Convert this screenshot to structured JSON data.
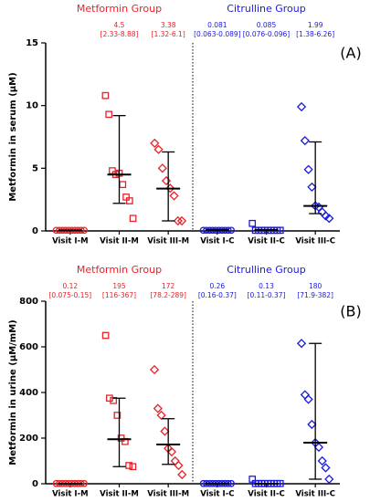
{
  "chart_data": [
    {
      "type": "dotplot",
      "panel_label": "(A)",
      "ylabel": "Metformin in serum (µM)",
      "groups": [
        "Metformin Group",
        "Citrulline Group"
      ],
      "group_colors": [
        "#e8222a",
        "#1a1adc"
      ],
      "categories": [
        "Visit I-M",
        "Visit II-M",
        "Visit III-M",
        "Visit I-C",
        "Visit II-C",
        "Visit III-C"
      ],
      "colors": [
        "#e8222a",
        "#e8222a",
        "#e8222a",
        "#1a1adc",
        "#1a1adc",
        "#1a1adc"
      ],
      "markers": [
        "circle",
        "square",
        "diamond",
        "circle",
        "square",
        "diamond"
      ],
      "points": [
        [
          0.05,
          0.05,
          0.05,
          0.05,
          0.05,
          0.05,
          0.05,
          0.05,
          0.05,
          0.05
        ],
        [
          10.8,
          9.3,
          4.8,
          4.5,
          4.6,
          3.7,
          2.7,
          2.4,
          1.0
        ],
        [
          7.0,
          6.5,
          5.0,
          4.0,
          3.4,
          2.8,
          0.8,
          0.8
        ],
        [
          0.05,
          0.05,
          0.05,
          0.05,
          0.05,
          0.05,
          0.05,
          0.05,
          0.05,
          0.05
        ],
        [
          0.6,
          0.05,
          0.05,
          0.05,
          0.05,
          0.05,
          0.05,
          0.05,
          0.05,
          0.05
        ],
        [
          9.9,
          7.2,
          4.9,
          3.5,
          2.0,
          1.9,
          1.5,
          1.2,
          1.0
        ]
      ],
      "medians": [
        0.05,
        4.5,
        3.38,
        0.081,
        0.085,
        1.99
      ],
      "median_labels": [
        null,
        "4.5",
        "3.38",
        "0.081",
        "0.085",
        "1.99"
      ],
      "range_labels": [
        null,
        "[2.33-8.88]",
        "[1.32-6.1]",
        "[0.063-0.089]",
        "[0.076-0.096]",
        "[1.38-6.26]"
      ],
      "whisker_low": [
        0.05,
        2.2,
        0.8,
        0.05,
        0.05,
        1.38
      ],
      "whisker_high": [
        0.05,
        9.2,
        6.3,
        0.05,
        0.05,
        7.1
      ],
      "ylim": [
        0,
        15
      ],
      "yticks": [
        0,
        5,
        10,
        15
      ]
    },
    {
      "type": "dotplot",
      "panel_label": "(B)",
      "ylabel": "Metformin in urine (µM/mM)",
      "groups": [
        "Metformin Group",
        "Citrulline Group"
      ],
      "group_colors": [
        "#e8222a",
        "#1a1adc"
      ],
      "categories": [
        "Visit I-M",
        "Visit II-M",
        "Visit III-M",
        "Visit I-C",
        "Visit II-C",
        "Visit III-C"
      ],
      "colors": [
        "#e8222a",
        "#e8222a",
        "#e8222a",
        "#1a1adc",
        "#1a1adc",
        "#1a1adc"
      ],
      "markers": [
        "circle",
        "square",
        "diamond",
        "circle",
        "square",
        "diamond"
      ],
      "points": [
        [
          1,
          1,
          1,
          1,
          1,
          1,
          1,
          1,
          1,
          1
        ],
        [
          650,
          375,
          365,
          300,
          200,
          185,
          80,
          75
        ],
        [
          500,
          330,
          300,
          230,
          155,
          140,
          100,
          80,
          40
        ],
        [
          1,
          1,
          1,
          1,
          1,
          1,
          1,
          1,
          1,
          1
        ],
        [
          20,
          1,
          1,
          1,
          1,
          1,
          1,
          1,
          1,
          1
        ],
        [
          615,
          390,
          370,
          260,
          180,
          160,
          100,
          70,
          20
        ]
      ],
      "medians": [
        0.12,
        195,
        172,
        0.26,
        0.13,
        180
      ],
      "median_labels": [
        "0.12",
        "195",
        "172",
        "0.26",
        "0.13",
        "180"
      ],
      "range_labels": [
        "[0.075-0.15]",
        "[116-367]",
        "[78.2-289]",
        "[0.16-0.37]",
        "[0.11-0.37]",
        "[71.9-382]"
      ],
      "whisker_low": [
        1,
        75,
        85,
        1,
        1,
        20
      ],
      "whisker_high": [
        1,
        375,
        285,
        1,
        1,
        615
      ],
      "ylim": [
        0,
        800
      ],
      "yticks": [
        0,
        200,
        400,
        600,
        800
      ]
    }
  ]
}
